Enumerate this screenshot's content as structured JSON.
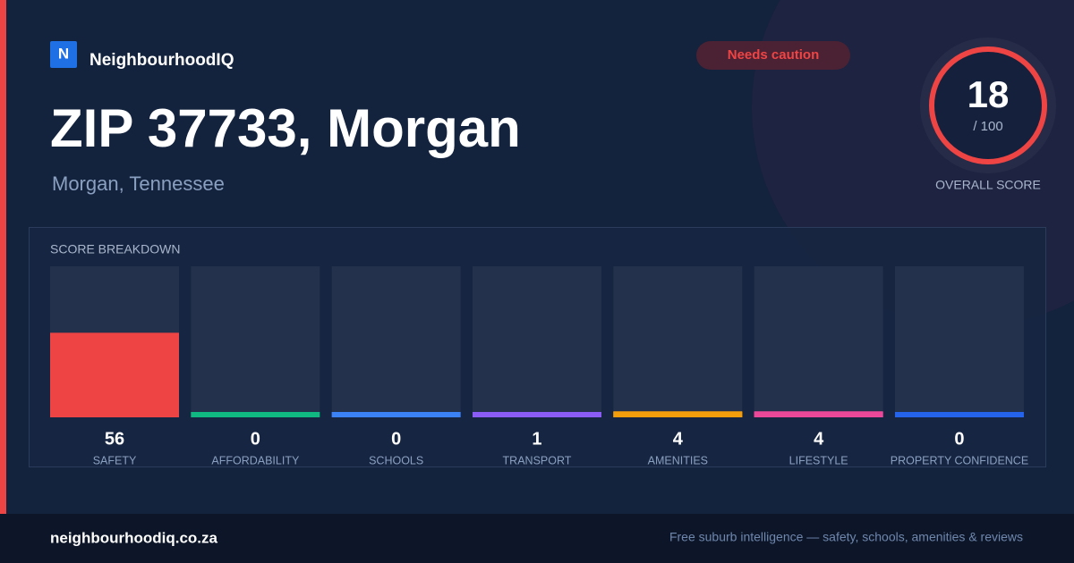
{
  "brand": {
    "logo": "N",
    "name": "NeighbourhoodIQ"
  },
  "badge": "Needs caution",
  "title": "ZIP 37733, Morgan",
  "subtitle": "Morgan, Tennessee",
  "overall": {
    "score": 18,
    "out_of": {
      "value": 100,
      "label": "/ 100"
    },
    "label": "OVERALL SCORE"
  },
  "breakdown": {
    "title": "SCORE BREAKDOWN",
    "items": [
      {
        "label": "SAFETY",
        "value": 56,
        "color": "#ef4444"
      },
      {
        "label": "AFFORDABILITY",
        "value": 0,
        "color": "#10b981"
      },
      {
        "label": "SCHOOLS",
        "value": 0,
        "color": "#3b82f6"
      },
      {
        "label": "TRANSPORT",
        "value": 1,
        "color": "#8b5cf6"
      },
      {
        "label": "AMENITIES",
        "value": 4,
        "color": "#f59e0b"
      },
      {
        "label": "LIFESTYLE",
        "value": 4,
        "color": "#ec4899"
      },
      {
        "label": "PROPERTY CONFIDENCE",
        "value": 0,
        "color": "#2563eb"
      }
    ]
  },
  "footer": {
    "site": "neighbourhoodiq.co.za",
    "tagline": "Free suburb intelligence — safety, schools, amenities & reviews"
  }
}
